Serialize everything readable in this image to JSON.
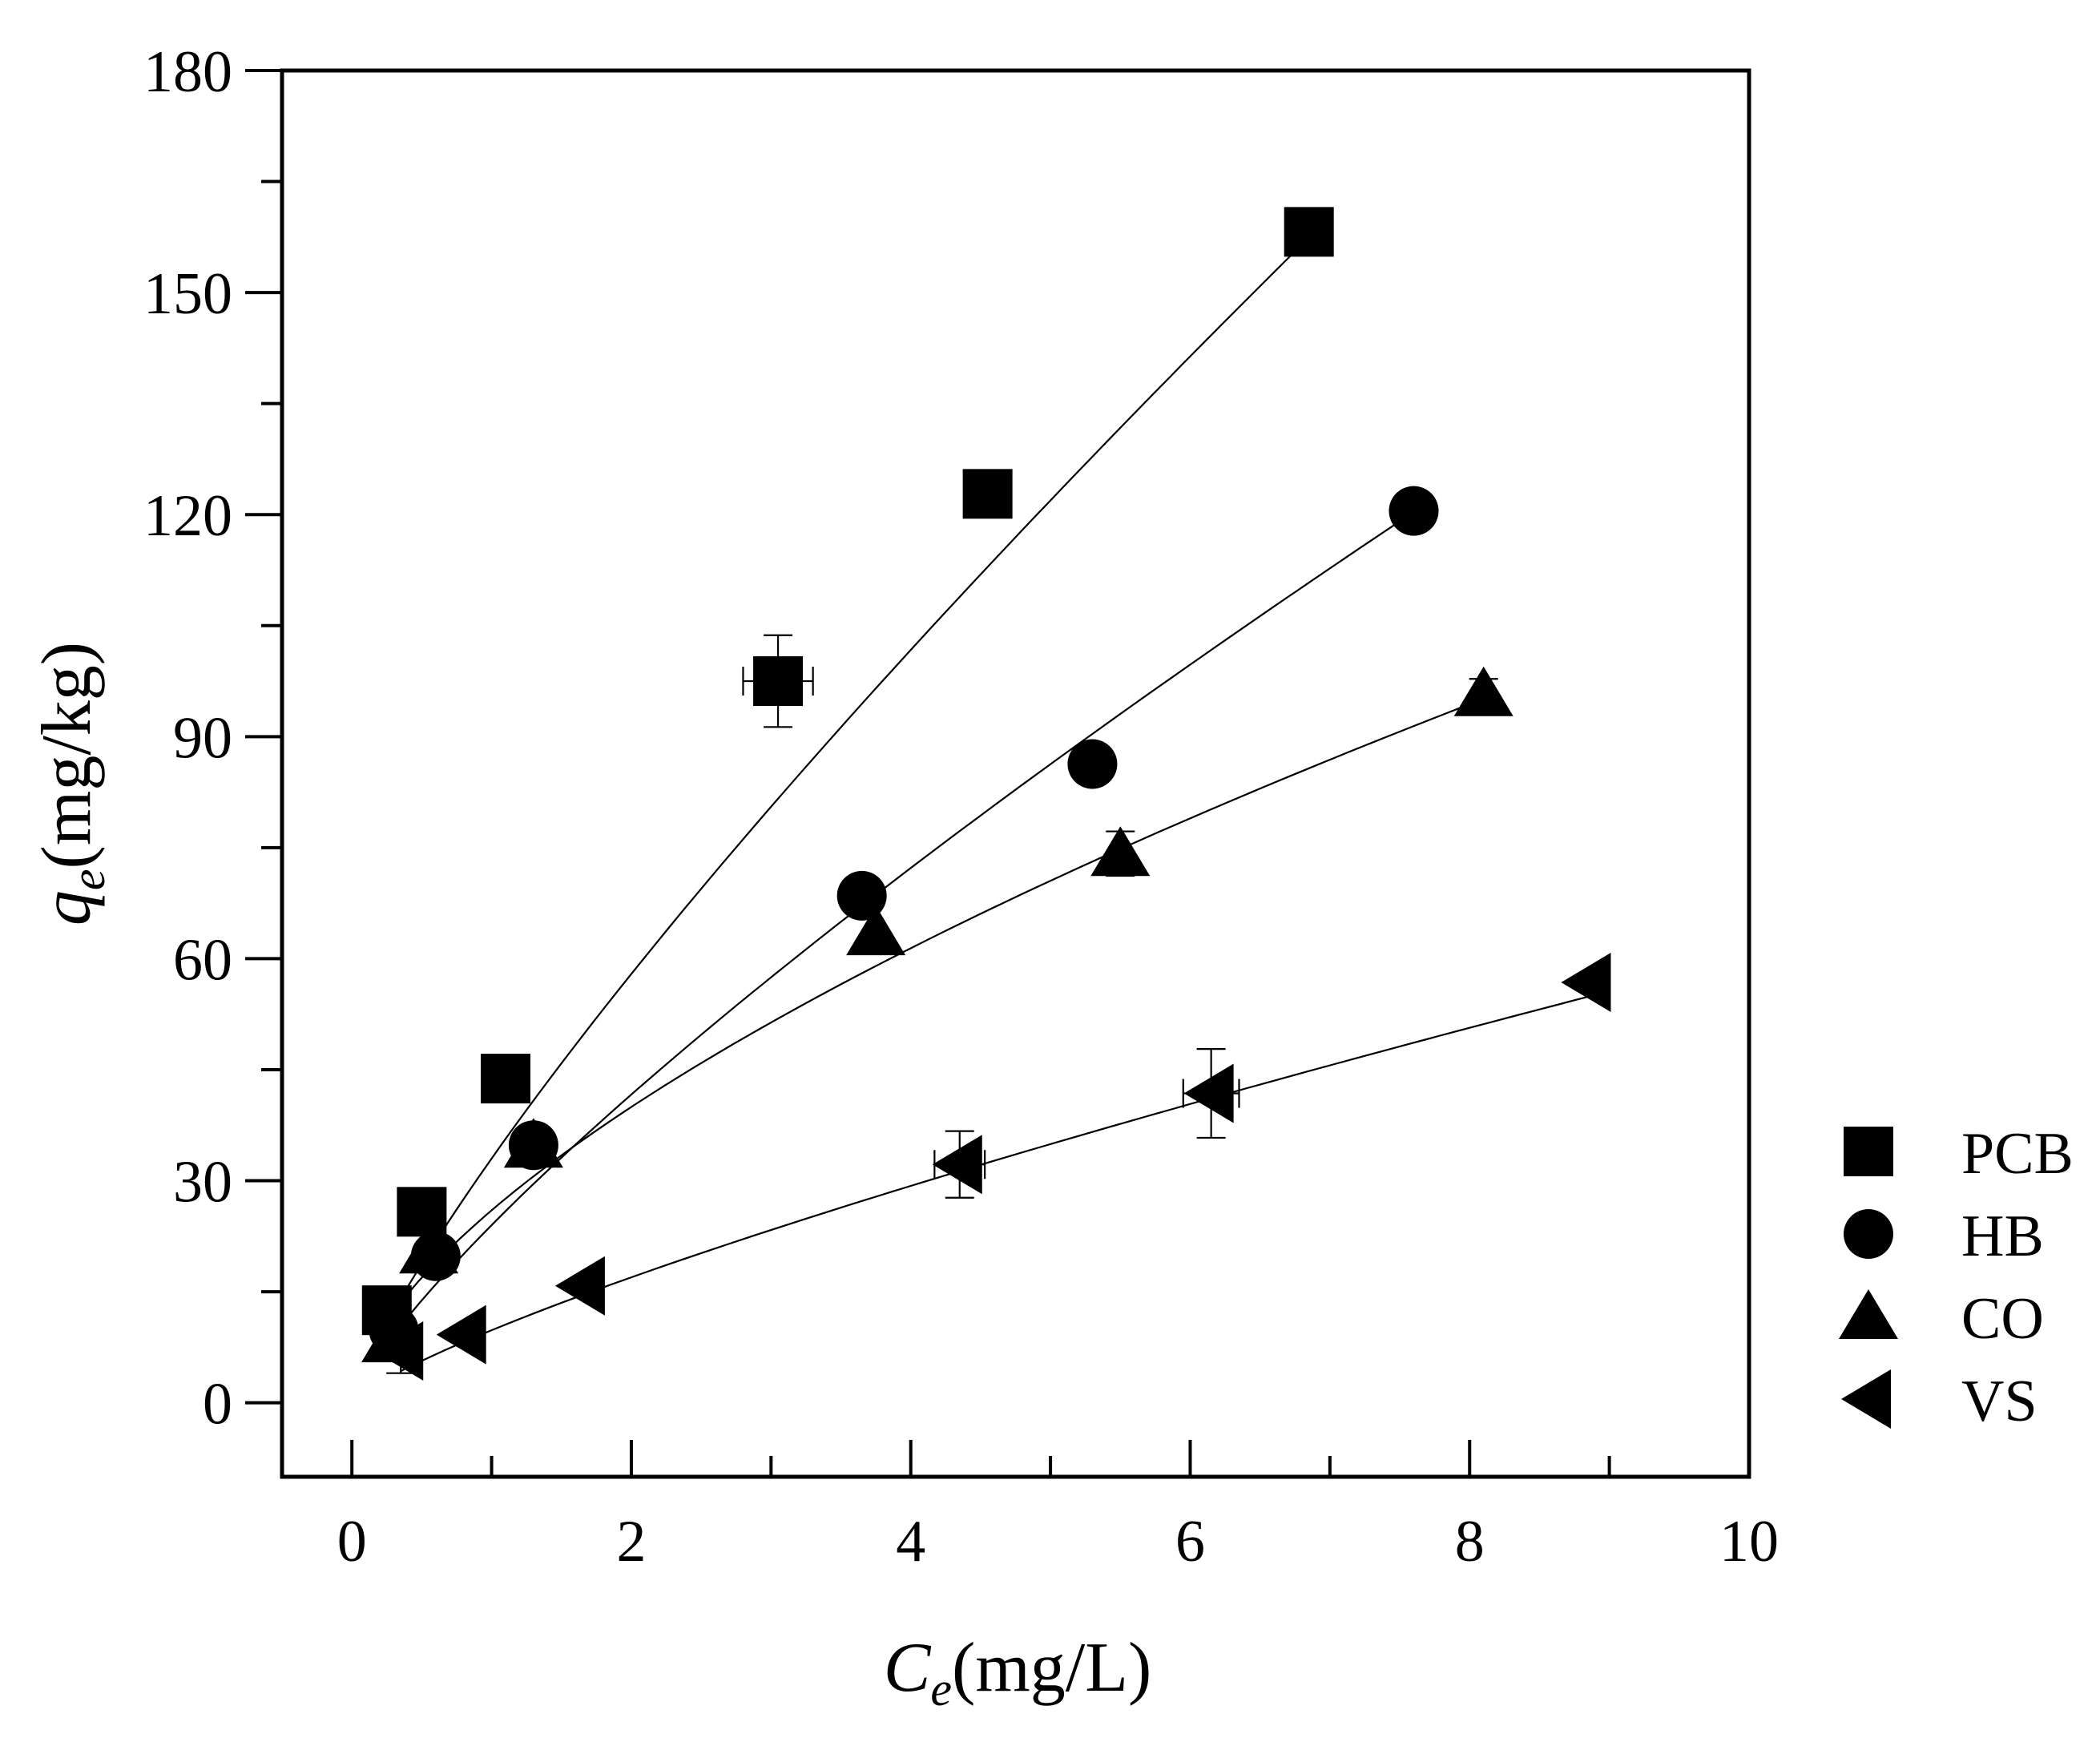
{
  "chart_data": {
    "type": "scatter",
    "title": "",
    "xlabel": {
      "symbol": "C",
      "subscript": "e",
      "unit": "(mg/L)"
    },
    "ylabel": {
      "symbol": "q",
      "subscript": "e",
      "unit": "(mg/kg)"
    },
    "xlim": [
      -0.5,
      10
    ],
    "ylim": [
      -10,
      180
    ],
    "x_ticks": [
      0,
      2,
      4,
      6,
      8,
      10
    ],
    "x_tick_labels": [
      "0",
      "2",
      "4",
      "6",
      "8",
      "10"
    ],
    "x_minor_ticks": [
      1,
      3,
      5,
      7,
      9
    ],
    "y_ticks": [
      0,
      30,
      60,
      90,
      120,
      150,
      180
    ],
    "y_tick_labels": [
      "0",
      "30",
      "60",
      "90",
      "120",
      "150",
      "180"
    ],
    "y_minor_ticks": [
      15,
      45,
      75,
      105,
      135,
      165
    ],
    "grid": false,
    "legend_position": "outside-right",
    "series": [
      {
        "name": "PCB",
        "marker": "square",
        "points": [
          {
            "x": 0.25,
            "y": 12.5
          },
          {
            "x": 0.5,
            "y": 25.8
          },
          {
            "x": 1.1,
            "y": 43.8
          },
          {
            "x": 3.05,
            "y": 97.5,
            "xerr": 0.25,
            "yerr": 6.2
          },
          {
            "x": 4.55,
            "y": 122.8
          },
          {
            "x": 6.85,
            "y": 158.2
          }
        ],
        "fit": {
          "model": "power",
          "k": 33.0,
          "n": 0.812
        }
      },
      {
        "name": "HB",
        "marker": "circle",
        "points": [
          {
            "x": 0.3,
            "y": 9.8
          },
          {
            "x": 0.6,
            "y": 19.8
          },
          {
            "x": 1.3,
            "y": 34.8
          },
          {
            "x": 3.65,
            "y": 68.5
          },
          {
            "x": 5.3,
            "y": 86.3
          },
          {
            "x": 7.6,
            "y": 120.5
          }
        ],
        "fit": {
          "model": "power",
          "k": 24.0,
          "n": 0.795
        }
      },
      {
        "name": "CO",
        "marker": "triangle-up",
        "points": [
          {
            "x": 0.28,
            "y": 8.5
          },
          {
            "x": 0.55,
            "y": 20.5
          },
          {
            "x": 1.3,
            "y": 34.8
          },
          {
            "x": 3.75,
            "y": 63.5
          },
          {
            "x": 5.5,
            "y": 74.2,
            "yerr": 3.0
          },
          {
            "x": 8.1,
            "y": 95.8,
            "yerr": 2.0
          }
        ],
        "fit": {
          "model": "power",
          "k": 26.0,
          "n": 0.62
        }
      },
      {
        "name": "VS",
        "marker": "triangle-left",
        "points": [
          {
            "x": 0.35,
            "y": 7.0,
            "yerr": 3.0
          },
          {
            "x": 0.8,
            "y": 9.2
          },
          {
            "x": 1.65,
            "y": 15.8
          },
          {
            "x": 4.35,
            "y": 32.2,
            "xerr": 0.18,
            "yerr": 4.5
          },
          {
            "x": 6.15,
            "y": 41.8,
            "xerr": 0.2,
            "yerr": 6.0
          },
          {
            "x": 8.85,
            "y": 56.8
          }
        ],
        "fit": {
          "model": "power",
          "k": 9.8,
          "n": 0.79
        }
      }
    ]
  }
}
